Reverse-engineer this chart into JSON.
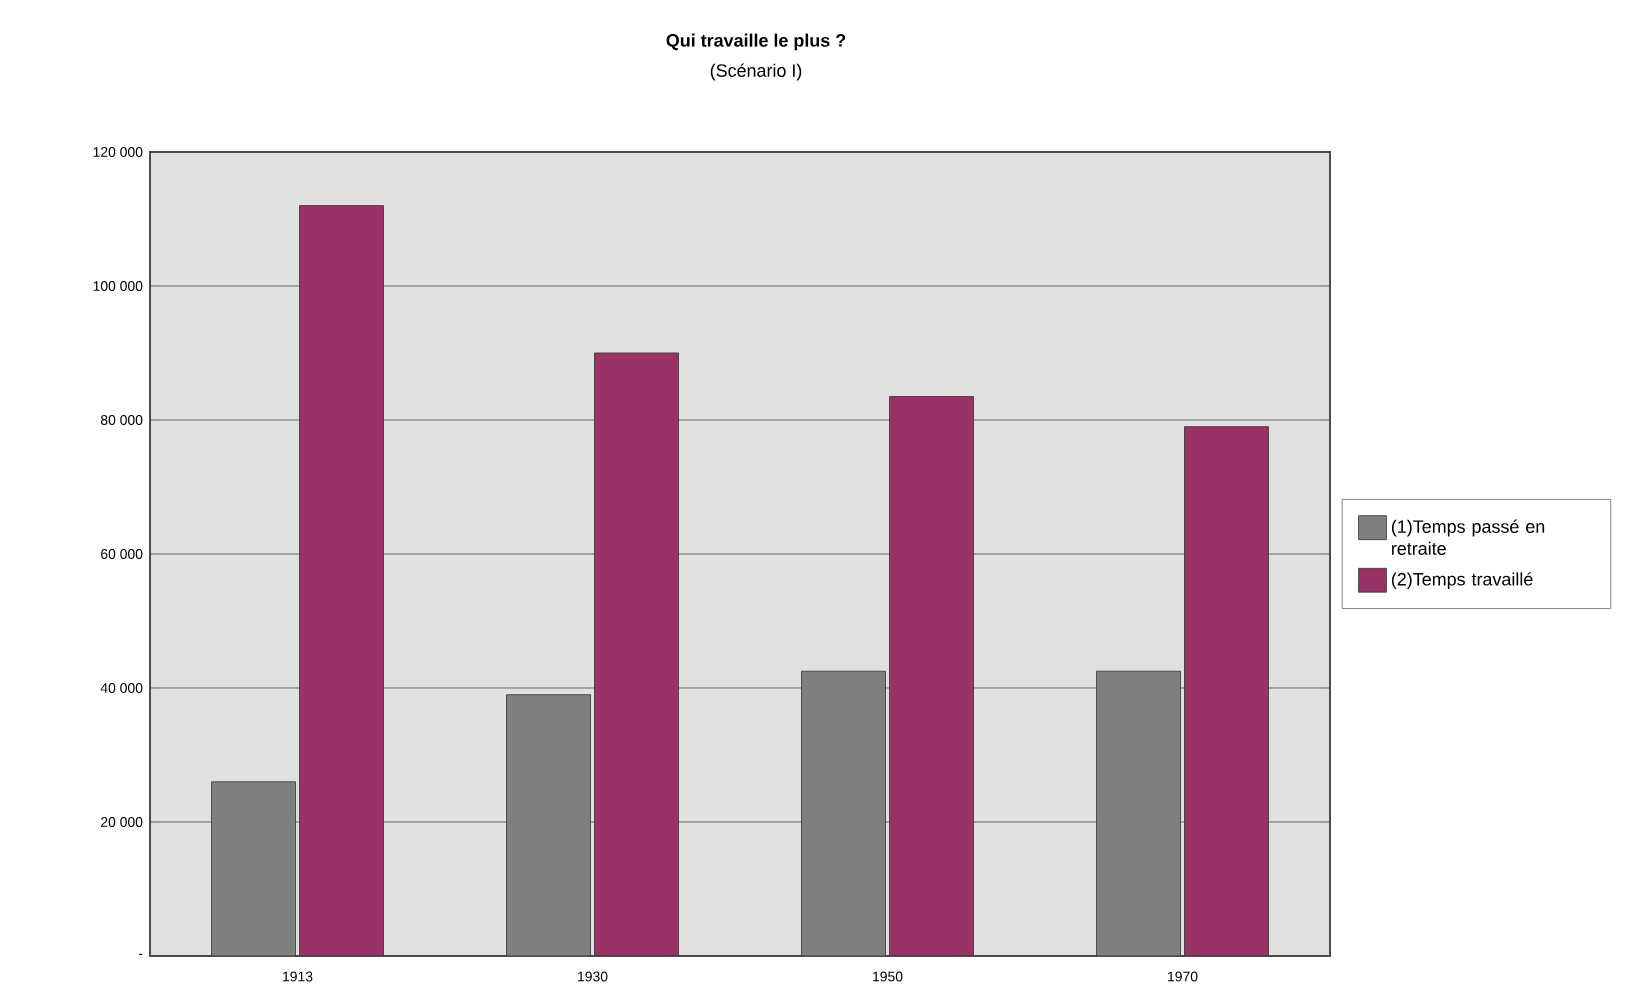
{
  "chart_data": {
    "type": "bar",
    "title": "Qui travaille le plus ?",
    "subtitle": "(Scénario I)",
    "categories": [
      "1913",
      "1930",
      "1950",
      "1970"
    ],
    "series": [
      {
        "name": "(1)Temps passé en retraite",
        "color": "#7f7f7f",
        "values": [
          26000,
          39000,
          42500,
          42500
        ]
      },
      {
        "name": "(2)Temps travaillé",
        "color": "#993366",
        "values": [
          112000,
          90000,
          83500,
          79000
        ]
      }
    ],
    "ylim": [
      0,
      120000
    ],
    "yticks": [
      {
        "value": 0,
        "label": "-"
      },
      {
        "value": 20000,
        "label": "20 000"
      },
      {
        "value": 40000,
        "label": "40 000"
      },
      {
        "value": 60000,
        "label": "60 000"
      },
      {
        "value": 80000,
        "label": "80 000"
      },
      {
        "value": 100000,
        "label": "100 000"
      },
      {
        "value": 120000,
        "label": "120 000"
      }
    ],
    "grid": "y",
    "legend": "right"
  }
}
